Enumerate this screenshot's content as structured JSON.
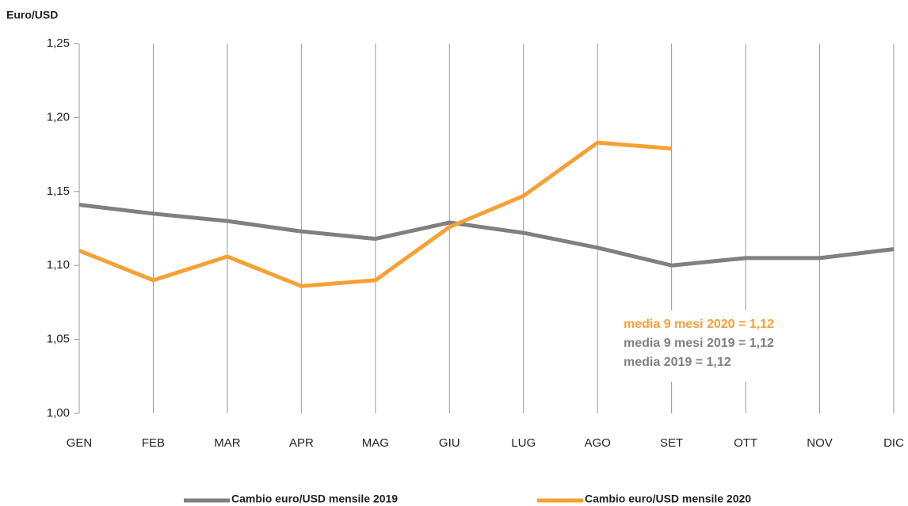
{
  "chart_data": {
    "type": "line",
    "y_label": "Euro/USD",
    "categories": [
      "GEN",
      "FEB",
      "MAR",
      "APR",
      "MAG",
      "GIU",
      "LUG",
      "AGO",
      "SET",
      "OTT",
      "NOV",
      "DIC"
    ],
    "series": [
      {
        "name": "Cambio euro/USD mensile 2019",
        "color": "#808080",
        "values": [
          1.141,
          1.135,
          1.13,
          1.123,
          1.118,
          1.129,
          1.122,
          1.112,
          1.1,
          1.105,
          1.105,
          1.111
        ]
      },
      {
        "name": "Cambio euro/USD mensile 2020",
        "color": "#f7a035",
        "values": [
          1.11,
          1.09,
          1.106,
          1.086,
          1.09,
          1.126,
          1.147,
          1.183,
          1.179,
          null,
          null,
          null
        ]
      }
    ],
    "ylim": [
      1.0,
      1.25
    ],
    "yticks": [
      {
        "value": 1.0,
        "label": "1,00"
      },
      {
        "value": 1.05,
        "label": "1,05"
      },
      {
        "value": 1.1,
        "label": "1,10"
      },
      {
        "value": 1.15,
        "label": "1,15"
      },
      {
        "value": 1.2,
        "label": "1,20"
      },
      {
        "value": 1.25,
        "label": "1,25"
      }
    ],
    "annotations": [
      {
        "text": "media 9 mesi 2020 = 1,12",
        "color": "#f7a035"
      },
      {
        "text": "media 9 mesi 2019 = 1,12",
        "color": "#808080"
      },
      {
        "text": "media 2019 = 1,12",
        "color": "#808080"
      }
    ],
    "legend": "bottom"
  }
}
